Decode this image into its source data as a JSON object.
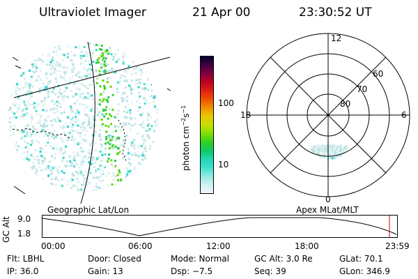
{
  "header": {
    "instrument": "Ultraviolet Imager",
    "date": "21 Apr 00",
    "time": "23:30:52 UT"
  },
  "colorbar": {
    "unit_label": "photon cm",
    "unit_exp1": "−2",
    "unit_mid": "s",
    "unit_exp2": "−1",
    "ticks": [
      "100",
      "10"
    ],
    "colors": [
      "#000030",
      "#400040",
      "#800040",
      "#c00020",
      "#e02010",
      "#f05000",
      "#f09000",
      "#e8c800",
      "#c8e000",
      "#80e000",
      "#30d020",
      "#10c860",
      "#20d8b0",
      "#40e0d0",
      "#90e8e0",
      "#d0f0f0",
      "#f0f8f8"
    ]
  },
  "polar": {
    "labels": {
      "top": "12",
      "bottom": "0",
      "left": "18",
      "right": "6"
    },
    "lat_labels": [
      "60",
      "70",
      "80"
    ]
  },
  "geo_label": "Geographic Lat/Lon",
  "apex_label": "Apex MLat/MLT",
  "altitude_plot": {
    "ylabel": "GC Alt",
    "yticks": [
      "9.0",
      "1.8"
    ],
    "xticks": [
      "00:00",
      "06:00",
      "12:00",
      "18:00",
      "23:59"
    ],
    "cursor_color": "#cc0000"
  },
  "status": {
    "flt": "Flt: LBHL",
    "door": "Door: Closed",
    "mode": "Mode: Normal",
    "gcalt": "GC Alt: 3.0 Re",
    "glat": "GLat:  70.1",
    "ip": "IP: 36.0",
    "gain": "Gain: 13",
    "dsp": "Dsp:   −7.5",
    "seq": "Seq: 39",
    "glon": "GLon: 346.9"
  }
}
